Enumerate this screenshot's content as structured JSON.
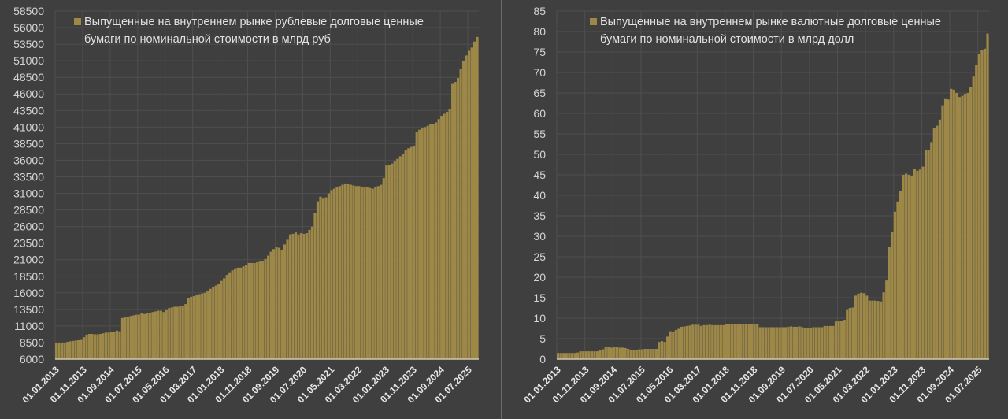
{
  "colors": {
    "background": "#3f3f3f",
    "bar": "#9e8848",
    "grid": "#4f4f4f",
    "axis_text": "#d4d4d4"
  },
  "chart_data": [
    {
      "type": "bar",
      "legend": "Выпущенные на внутреннем рынке рублевые долговые ценные бумаги по номинальной стоимости в млрд руб",
      "legend_placement": "top-left",
      "ylim": [
        6000,
        58500
      ],
      "y_ticks": [
        6000,
        8500,
        11000,
        13500,
        16000,
        18500,
        21000,
        23500,
        26000,
        28500,
        31000,
        33500,
        36000,
        38500,
        41000,
        43500,
        46000,
        48500,
        51000,
        53500,
        56000,
        58500
      ],
      "x_tick_labels": [
        "01.01.2013",
        "01.11.2013",
        "01.09.2014",
        "01.07.2015",
        "01.05.2016",
        "01.03.2017",
        "01.01.2018",
        "01.11.2018",
        "01.09.2019",
        "01.07.2020",
        "01.05.2021",
        "01.03.2022",
        "01.01.2023",
        "01.11.2023",
        "01.09.2024",
        "01.07.2025"
      ],
      "frequency": "monthly",
      "grid": true,
      "values": [
        8400,
        8400,
        8450,
        8500,
        8600,
        8700,
        8750,
        8800,
        8850,
        8900,
        9300,
        9700,
        9800,
        9800,
        9750,
        9750,
        9800,
        9900,
        10000,
        10000,
        10100,
        10100,
        10300,
        10200,
        12200,
        12400,
        12300,
        12500,
        12600,
        12700,
        12700,
        12900,
        12800,
        12900,
        13000,
        13100,
        13200,
        13300,
        13300,
        13100,
        13500,
        13700,
        13800,
        13900,
        13900,
        14000,
        14000,
        14300,
        15200,
        15400,
        15500,
        15700,
        15800,
        15900,
        16000,
        16300,
        16600,
        16900,
        17100,
        17300,
        17800,
        18200,
        18700,
        19100,
        19400,
        19700,
        19800,
        19800,
        20000,
        20200,
        20500,
        20500,
        20500,
        20600,
        20700,
        20800,
        21100,
        21600,
        22200,
        22600,
        22900,
        22800,
        22500,
        23300,
        24000,
        24800,
        24900,
        25100,
        24800,
        25000,
        24900,
        25000,
        25500,
        26000,
        28000,
        29800,
        30500,
        30200,
        30400,
        31000,
        31500,
        31700,
        31900,
        32100,
        32300,
        32500,
        32400,
        32300,
        32200,
        32100,
        32100,
        32000,
        32000,
        31900,
        31800,
        31700,
        31900,
        32100,
        32300,
        33300,
        35200,
        35300,
        35500,
        35800,
        36200,
        36600,
        37000,
        37500,
        37800,
        38000,
        38200,
        40300,
        40600,
        40800,
        41000,
        41200,
        41400,
        41500,
        41700,
        42200,
        42700,
        43000,
        43300,
        43700,
        47500,
        47800,
        48400,
        49800,
        51000,
        51800,
        52500,
        53000,
        53900,
        54600
      ]
    },
    {
      "type": "bar",
      "legend": "Выпущенные на внутреннем рынке валютные долговые ценные бумаги по номинальной стоимости в млрд долл",
      "legend_placement": "top-left",
      "ylim": [
        0,
        85
      ],
      "y_ticks": [
        0,
        5,
        10,
        15,
        20,
        25,
        30,
        35,
        40,
        45,
        50,
        55,
        60,
        65,
        70,
        75,
        80,
        85
      ],
      "x_tick_labels": [
        "01.01.2013",
        "01.11.2013",
        "01.09.2014",
        "01.07.2015",
        "01.05.2016",
        "01.03.2017",
        "01.01.2018",
        "01.11.2018",
        "01.09.2019",
        "01.07.2020",
        "01.05.2021",
        "01.03.2022",
        "01.01.2023",
        "01.11.2023",
        "01.09.2024",
        "01.07.2025"
      ],
      "frequency": "monthly",
      "grid": true,
      "values": [
        1.5,
        1.5,
        1.5,
        1.5,
        1.5,
        1.5,
        1.5,
        1.6,
        1.9,
        1.9,
        1.9,
        1.9,
        1.9,
        1.9,
        1.9,
        2.3,
        2.4,
        2.9,
        2.9,
        2.8,
        2.9,
        2.9,
        2.8,
        2.8,
        2.7,
        2.5,
        2.2,
        2.3,
        2.3,
        2.4,
        2.4,
        2.5,
        2.5,
        2.5,
        2.5,
        2.5,
        4.2,
        4.4,
        4.2,
        5.5,
        6.8,
        6.7,
        7.1,
        7.4,
        7.9,
        8.0,
        8.1,
        8.2,
        8.4,
        8.4,
        8.4,
        8.1,
        8.3,
        8.3,
        8.4,
        8.3,
        8.3,
        8.3,
        8.3,
        8.3,
        8.5,
        8.6,
        8.6,
        8.5,
        8.5,
        8.5,
        8.5,
        8.5,
        8.5,
        8.5,
        8.5,
        8.5,
        7.8,
        7.8,
        7.8,
        7.8,
        7.8,
        7.8,
        7.8,
        7.8,
        7.8,
        7.8,
        7.9,
        8.0,
        7.9,
        7.9,
        8.0,
        7.8,
        7.6,
        7.7,
        7.7,
        7.8,
        7.8,
        7.8,
        7.8,
        8.1,
        8.1,
        8.1,
        8.1,
        9.2,
        9.3,
        9.4,
        9.6,
        12.2,
        12.5,
        12.6,
        15.5,
        16.0,
        16.2,
        16.1,
        15.5,
        14.3,
        14.3,
        14.3,
        14.2,
        14.1,
        16.3,
        19.2,
        27.5,
        31.0,
        36.0,
        38.5,
        41.0,
        45.0,
        45.3,
        45.0,
        44.8,
        46.5,
        46.0,
        46.3,
        47.0,
        51.0,
        51.0,
        53.0,
        56.5,
        57.0,
        58.5,
        62.0,
        63.5,
        63.4,
        66.0,
        65.8,
        65.0,
        64.0,
        64.3,
        64.8,
        65.0,
        66.5,
        69.0,
        71.8,
        74.5,
        75.5,
        75.8,
        79.5
      ]
    }
  ]
}
